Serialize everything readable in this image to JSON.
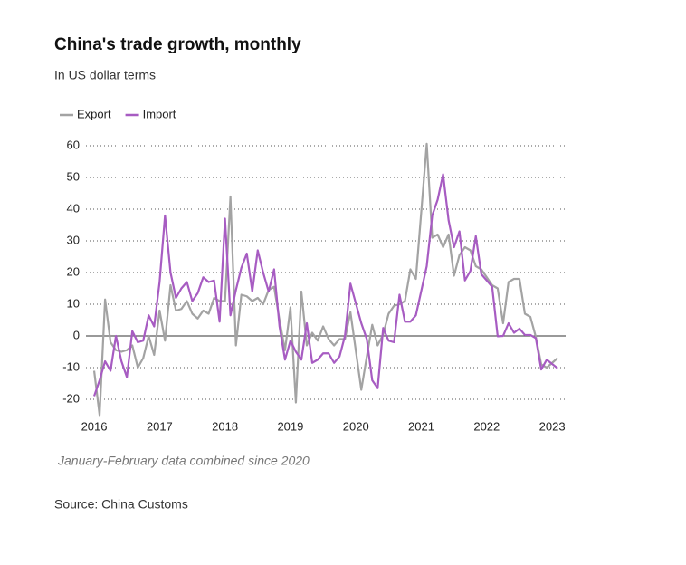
{
  "chart_data": {
    "type": "line",
    "title": "China's trade growth, monthly",
    "subtitle": "In US dollar terms",
    "note": "January-February data combined since 2020",
    "source": "Source: China Customs",
    "x": [
      2016,
      2016.083,
      2016.167,
      2016.25,
      2016.333,
      2016.417,
      2016.5,
      2016.583,
      2016.667,
      2016.75,
      2016.833,
      2016.917,
      2017,
      2017.083,
      2017.167,
      2017.25,
      2017.333,
      2017.417,
      2017.5,
      2017.583,
      2017.667,
      2017.75,
      2017.833,
      2017.917,
      2018,
      2018.083,
      2018.167,
      2018.25,
      2018.333,
      2018.417,
      2018.5,
      2018.583,
      2018.667,
      2018.75,
      2018.833,
      2018.917,
      2019,
      2019.083,
      2019.167,
      2019.25,
      2019.333,
      2019.417,
      2019.5,
      2019.583,
      2019.667,
      2019.75,
      2019.833,
      2019.917,
      2020.083,
      2020.167,
      2020.25,
      2020.333,
      2020.417,
      2020.5,
      2020.583,
      2020.667,
      2020.75,
      2020.833,
      2020.917,
      2021.083,
      2021.167,
      2021.25,
      2021.333,
      2021.417,
      2021.5,
      2021.583,
      2021.667,
      2021.75,
      2021.833,
      2021.917,
      2022.083,
      2022.167,
      2022.25,
      2022.333,
      2022.417,
      2022.5,
      2022.583,
      2022.667,
      2022.75,
      2022.833,
      2022.917,
      2023.083
    ],
    "series": [
      {
        "name": "Export",
        "color": "#a3a3a3",
        "values": [
          -11,
          -25,
          11.5,
          -2,
          -4.5,
          -5,
          -4.5,
          -3,
          -10,
          -7,
          0,
          -6,
          8,
          -1.5,
          16,
          8,
          8.5,
          11,
          7,
          5.5,
          8,
          7,
          12,
          11,
          11,
          44,
          -3,
          13,
          12.5,
          11,
          12,
          10,
          14.5,
          15.5,
          5,
          -4.5,
          9,
          -21,
          14,
          -3,
          1,
          -1.5,
          3,
          -1,
          -3,
          -1,
          -1,
          7.5,
          -17,
          -6.5,
          3.5,
          -3,
          0.5,
          7,
          9.5,
          10,
          11,
          21,
          18,
          60.6,
          31,
          32,
          28,
          32,
          19,
          25.5,
          28,
          27,
          22,
          21,
          16,
          15,
          4,
          17,
          18,
          18,
          7,
          6,
          -0.3,
          -9,
          -10,
          -7
        ]
      },
      {
        "name": "Import",
        "color": "#a75cc2",
        "values": [
          -19,
          -14,
          -8,
          -11,
          0,
          -8,
          -13,
          1.5,
          -2,
          -1.5,
          6.5,
          3,
          17,
          38,
          20,
          12,
          15,
          17,
          11,
          13.5,
          18.5,
          17,
          17.5,
          4.5,
          37,
          6.5,
          14.5,
          21.5,
          26,
          14,
          27,
          20,
          14,
          21,
          3,
          -7.5,
          -1.5,
          -5,
          -7.5,
          4,
          -8.5,
          -7.5,
          -5.5,
          -5.5,
          -8.5,
          -6.5,
          0,
          16.5,
          4,
          -1,
          -14,
          -16.5,
          2.5,
          -1.5,
          -2,
          13,
          4.5,
          4.5,
          6.5,
          22,
          38,
          43,
          51,
          36.5,
          28,
          33,
          17.5,
          20.5,
          31.5,
          19.5,
          15.5,
          -0.1,
          0,
          4,
          1,
          2.3,
          0.3,
          0.3,
          -0.7,
          -10.6,
          -7.5,
          -10.2
        ]
      }
    ],
    "xlim": [
      2015.875,
      2023.206
    ],
    "xticks": [
      2016,
      2017,
      2018,
      2019,
      2020,
      2021,
      2022,
      2023
    ],
    "ylim": [
      -24,
      60
    ],
    "yticks": [
      -20,
      -10,
      0,
      10,
      20,
      30,
      40,
      50,
      60
    ],
    "grid": true,
    "legend": "top-left"
  }
}
